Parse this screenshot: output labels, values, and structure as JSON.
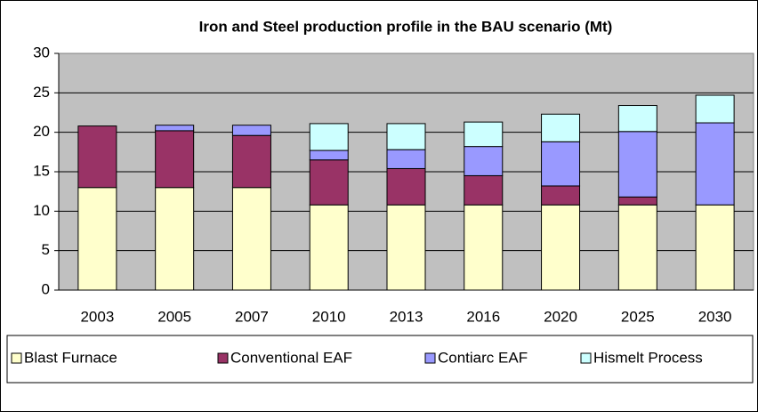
{
  "chart_data": {
    "type": "stacked_bar",
    "title": "Iron and Steel production profile in the BAU scenario (Mt)",
    "categories": [
      "2003",
      "2005",
      "2007",
      "2010",
      "2013",
      "2016",
      "2020",
      "2025",
      "2030"
    ],
    "series": [
      {
        "name": "Blast Furnace",
        "color": "#ffffcc",
        "values": [
          13,
          13,
          13,
          10.8,
          10.8,
          10.8,
          10.8,
          10.8,
          10.8
        ]
      },
      {
        "name": "Conventional EAF",
        "color": "#993366",
        "values": [
          7.8,
          7.2,
          6.6,
          5.7,
          4.6,
          3.7,
          2.4,
          1.0,
          0
        ]
      },
      {
        "name": "Contiarc EAF",
        "color": "#9999ff",
        "values": [
          0,
          0.7,
          1.3,
          1.2,
          2.4,
          3.7,
          5.6,
          8.3,
          10.4
        ]
      },
      {
        "name": "Hismelt Process",
        "color": "#ccffff",
        "values": [
          0,
          0,
          0,
          3.4,
          3.3,
          3.1,
          3.5,
          3.3,
          3.5
        ]
      }
    ],
    "ylim": [
      0,
      30
    ],
    "yticks": [
      0,
      5,
      10,
      15,
      20,
      25,
      30
    ],
    "grid": true,
    "legend": "bottom"
  }
}
